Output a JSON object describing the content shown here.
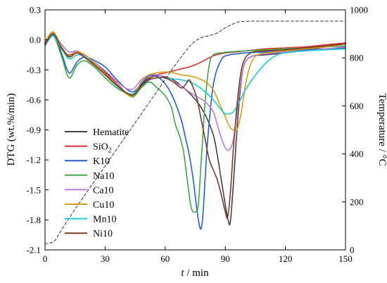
{
  "chart_data": {
    "type": "line",
    "xlabel": {
      "var": "t",
      "sep": " / ",
      "unit": "min"
    },
    "ylabel": "DTG (wt.%/min)",
    "y2label": "Temperature / °C",
    "xlim": [
      0,
      150
    ],
    "ylim": [
      -2.1,
      0.3
    ],
    "y2lim": [
      0,
      1000
    ],
    "xticks": [
      "0",
      "30",
      "60",
      "90",
      "120",
      "150"
    ],
    "yticks": [
      "-2.1",
      "-1.8",
      "-1.5",
      "-1.2",
      "-0.9",
      "-0.6",
      "-0.3",
      "0.0",
      "0.3"
    ],
    "y2ticks": [
      "0",
      "200",
      "400",
      "600",
      "800",
      "1000"
    ],
    "grid": false,
    "legend_position": "left",
    "series": [
      {
        "name": "Hematite",
        "color": "#404040",
        "x": [
          0,
          4,
          8,
          12,
          16,
          20,
          25,
          30,
          35,
          40,
          44,
          48,
          52,
          56,
          60,
          64,
          68,
          72,
          76,
          80,
          84,
          86,
          88,
          90,
          91.5,
          92.5,
          94,
          96,
          98,
          100,
          104,
          110,
          120,
          130,
          140,
          150
        ],
        "y": [
          -0.02,
          0.06,
          -0.08,
          -0.17,
          -0.12,
          -0.16,
          -0.24,
          -0.32,
          -0.42,
          -0.52,
          -0.55,
          -0.45,
          -0.38,
          -0.36,
          -0.37,
          -0.4,
          -0.46,
          -0.53,
          -0.62,
          -0.75,
          -0.95,
          -1.15,
          -1.4,
          -1.65,
          -1.81,
          -1.82,
          -1.45,
          -0.85,
          -0.4,
          -0.22,
          -0.16,
          -0.15,
          -0.13,
          -0.1,
          -0.07,
          -0.03
        ]
      },
      {
        "name": "SiO2",
        "name_base": "SiO",
        "name_sub": "2",
        "color": "#e03030",
        "x": [
          0,
          4,
          8,
          12,
          16,
          20,
          25,
          30,
          35,
          40,
          44,
          48,
          52,
          56,
          60,
          64,
          68,
          72,
          76,
          80,
          84,
          90,
          96,
          100,
          110,
          120,
          130,
          140,
          150
        ],
        "y": [
          -0.03,
          0.05,
          -0.09,
          -0.15,
          -0.12,
          -0.17,
          -0.25,
          -0.33,
          -0.42,
          -0.52,
          -0.56,
          -0.47,
          -0.39,
          -0.35,
          -0.33,
          -0.31,
          -0.29,
          -0.27,
          -0.24,
          -0.2,
          -0.16,
          -0.13,
          -0.12,
          -0.11,
          -0.09,
          -0.08,
          -0.07,
          -0.05,
          -0.03
        ]
      },
      {
        "name": "K10",
        "color": "#1f5fc8",
        "x": [
          0,
          4,
          8,
          12,
          16,
          20,
          25,
          30,
          35,
          40,
          44,
          48,
          52,
          56,
          60,
          64,
          68,
          70,
          72,
          74,
          75.5,
          77,
          78,
          79,
          81,
          84,
          88,
          92,
          96,
          100,
          110,
          120,
          130,
          140,
          150
        ],
        "y": [
          -0.04,
          0.04,
          -0.12,
          -0.33,
          -0.22,
          -0.17,
          -0.21,
          -0.27,
          -0.38,
          -0.48,
          -0.52,
          -0.44,
          -0.36,
          -0.37,
          -0.44,
          -0.58,
          -0.8,
          -0.97,
          -1.15,
          -1.4,
          -1.65,
          -1.85,
          -1.88,
          -1.7,
          -1.05,
          -0.45,
          -0.2,
          -0.15,
          -0.14,
          -0.13,
          -0.12,
          -0.11,
          -0.1,
          -0.09,
          -0.08
        ]
      },
      {
        "name": "Na10",
        "color": "#3ca84a",
        "x": [
          0,
          4,
          8,
          12,
          16,
          20,
          25,
          30,
          35,
          40,
          44,
          48,
          52,
          56,
          60,
          63,
          65,
          67,
          69,
          71,
          73,
          75,
          76.5,
          78,
          80,
          82,
          84,
          88,
          92,
          100,
          110,
          120,
          130,
          140,
          150
        ],
        "y": [
          -0.02,
          0.05,
          -0.15,
          -0.38,
          -0.25,
          -0.21,
          -0.28,
          -0.38,
          -0.47,
          -0.53,
          -0.57,
          -0.48,
          -0.42,
          -0.48,
          -0.56,
          -0.67,
          -0.84,
          -0.95,
          -1.1,
          -1.4,
          -1.68,
          -1.72,
          -1.65,
          -1.2,
          -0.6,
          -0.25,
          -0.15,
          -0.13,
          -0.12,
          -0.11,
          -0.1,
          -0.09,
          -0.08,
          -0.07,
          -0.06
        ]
      },
      {
        "name": "Ca10",
        "color": "#b77be0",
        "x": [
          0,
          4,
          8,
          12,
          16,
          20,
          25,
          30,
          35,
          40,
          44,
          48,
          52,
          56,
          60,
          64,
          68,
          72,
          76,
          80,
          84,
          86,
          88,
          90,
          92,
          94,
          96,
          98,
          100,
          104,
          110,
          120,
          130,
          140,
          150
        ],
        "y": [
          -0.03,
          0.07,
          -0.04,
          -0.12,
          -0.11,
          -0.16,
          -0.23,
          -0.31,
          -0.4,
          -0.48,
          -0.49,
          -0.4,
          -0.35,
          -0.35,
          -0.38,
          -0.42,
          -0.46,
          -0.52,
          -0.57,
          -0.62,
          -0.72,
          -0.85,
          -0.98,
          -1.08,
          -1.1,
          -1.0,
          -0.7,
          -0.38,
          -0.22,
          -0.16,
          -0.14,
          -0.12,
          -0.11,
          -0.09,
          -0.07
        ]
      },
      {
        "name": "Cu10",
        "color": "#d4a012",
        "x": [
          0,
          4,
          8,
          12,
          16,
          20,
          25,
          30,
          35,
          40,
          44,
          48,
          52,
          56,
          60,
          64,
          68,
          72,
          76,
          80,
          84,
          88,
          92,
          94,
          96,
          98,
          100,
          102,
          104,
          106,
          110,
          120,
          130,
          140,
          150
        ],
        "y": [
          -0.02,
          0.08,
          -0.06,
          -0.16,
          -0.12,
          -0.15,
          -0.24,
          -0.34,
          -0.43,
          -0.53,
          -0.56,
          -0.42,
          -0.35,
          -0.33,
          -0.32,
          -0.33,
          -0.35,
          -0.36,
          -0.38,
          -0.42,
          -0.5,
          -0.68,
          -0.86,
          -0.9,
          -0.89,
          -0.72,
          -0.46,
          -0.28,
          -0.19,
          -0.15,
          -0.13,
          -0.11,
          -0.09,
          -0.07,
          -0.04
        ]
      },
      {
        "name": "Mn10",
        "color": "#1fc8d0",
        "x": [
          0,
          4,
          8,
          12,
          16,
          20,
          25,
          30,
          35,
          40,
          44,
          48,
          52,
          56,
          60,
          64,
          68,
          72,
          76,
          80,
          84,
          88,
          90,
          92,
          94,
          96,
          98,
          100,
          104,
          108,
          112,
          116,
          120,
          130,
          140,
          150
        ],
        "y": [
          -0.06,
          0.04,
          -0.08,
          -0.19,
          -0.15,
          -0.17,
          -0.26,
          -0.35,
          -0.45,
          -0.52,
          -0.54,
          -0.46,
          -0.4,
          -0.38,
          -0.38,
          -0.39,
          -0.4,
          -0.42,
          -0.46,
          -0.52,
          -0.6,
          -0.7,
          -0.74,
          -0.74,
          -0.72,
          -0.66,
          -0.58,
          -0.5,
          -0.38,
          -0.28,
          -0.2,
          -0.15,
          -0.13,
          -0.11,
          -0.1,
          -0.09
        ]
      },
      {
        "name": "Ni10",
        "color": "#7a3a2a",
        "x": [
          0,
          4,
          8,
          12,
          16,
          20,
          25,
          30,
          35,
          40,
          44,
          48,
          52,
          56,
          60,
          64,
          68,
          70,
          72,
          74,
          76,
          78,
          80,
          82,
          84,
          86,
          88,
          90,
          91,
          92,
          93,
          94,
          96,
          98,
          100,
          102,
          104,
          110,
          120,
          130,
          140,
          150
        ],
        "y": [
          -0.05,
          0.06,
          -0.07,
          -0.17,
          -0.13,
          -0.18,
          -0.26,
          -0.35,
          -0.44,
          -0.52,
          -0.55,
          -0.46,
          -0.4,
          -0.38,
          -0.38,
          -0.42,
          -0.48,
          -0.45,
          -0.4,
          -0.48,
          -0.6,
          -0.8,
          -1.0,
          -1.2,
          -1.3,
          -1.4,
          -1.55,
          -1.72,
          -1.78,
          -1.65,
          -1.4,
          -1.1,
          -0.62,
          -0.3,
          -0.18,
          -0.14,
          -0.12,
          -0.11,
          -0.1,
          -0.08,
          -0.06,
          -0.04
        ]
      },
      {
        "name": "Temperature",
        "axis": "right",
        "color": "#333333",
        "dash": true,
        "x": [
          0,
          3,
          5,
          8,
          15,
          25,
          35,
          45,
          55,
          65,
          75,
          85,
          90,
          94,
          97,
          100,
          104,
          110,
          120,
          150
        ],
        "y": [
          25,
          30,
          40,
          80,
          170,
          290,
          410,
          530,
          650,
          770,
          870,
          900,
          925,
          942,
          950,
          952,
          953,
          953,
          953,
          953
        ]
      }
    ]
  }
}
